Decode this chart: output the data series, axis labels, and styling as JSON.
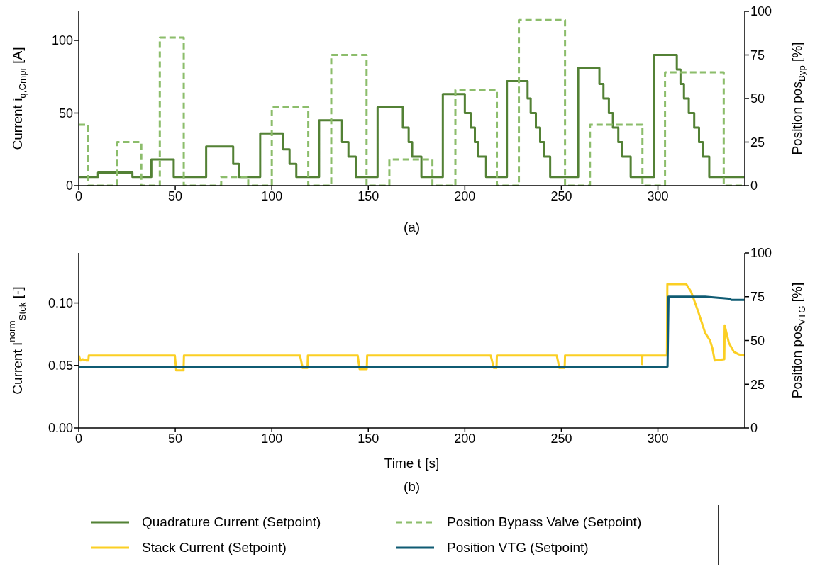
{
  "chart_data": [
    {
      "type": "step",
      "annotations": [
        "(a)"
      ],
      "ylabel": "Current i$_{q,Cmpr}$ [A]",
      "y2label": "Position pos$_{Byp}$ [%]",
      "xlim": [
        0,
        345
      ],
      "xticks": [
        0,
        50,
        100,
        150,
        200,
        250,
        300
      ],
      "ylim": [
        0,
        120
      ],
      "yticks": [
        0,
        50,
        100
      ],
      "y2lim": [
        0,
        100
      ],
      "y2ticks": [
        0,
        25,
        50,
        75,
        100
      ],
      "legend": "bottom",
      "series": [
        {
          "name": "Quadrature Current (Setpoint)",
          "color": "#538135",
          "x": [
            0,
            10,
            27.8,
            37.6,
            49.2,
            66,
            80,
            83,
            94,
            105.9,
            109.2,
            112.7,
            124.5,
            136.4,
            139.7,
            143.5,
            154.8,
            167.9,
            170.9,
            172.7,
            177.5,
            188.6,
            200,
            203.1,
            205.2,
            207,
            211,
            221.8,
            232.5,
            234.1,
            236.8,
            239,
            241.1,
            244.2,
            258.7,
            269.7,
            271.8,
            274.6,
            276.7,
            279.5,
            281.6,
            285.9,
            297.9,
            309.8,
            311.7,
            313.5,
            316,
            318.8,
            321.3,
            323.3,
            326.6,
            344.8
          ],
          "values": [
            6,
            9,
            6,
            18,
            6,
            27,
            15,
            6,
            36,
            25,
            15,
            6,
            45,
            30,
            20,
            6,
            54,
            40,
            30,
            20,
            6,
            63,
            50,
            40,
            30,
            20,
            6,
            72,
            60,
            50,
            40,
            30,
            20,
            6,
            81,
            70,
            60,
            50,
            40,
            30,
            20,
            6,
            90,
            80,
            70,
            60,
            50,
            40,
            30,
            20,
            6,
            6
          ]
        },
        {
          "name": "Position Bypass Valve (Setpoint)",
          "color": "#8cbd6b",
          "axis": "y2",
          "line_style": "dashed",
          "x": [
            0,
            4.7,
            19.9,
            32.4,
            42,
            54.4,
            73.8,
            87.8,
            100,
            118.9,
            130.8,
            149.1,
            160.9,
            183.2,
            195.1,
            216.6,
            228,
            251.9,
            264.8,
            292,
            303.7,
            334.1,
            344.8
          ],
          "values": [
            35,
            0,
            25,
            0,
            85,
            0,
            5,
            0,
            45,
            0,
            75,
            0,
            15,
            0,
            55,
            0,
            95,
            0,
            35,
            0,
            65,
            0,
            0
          ]
        }
      ]
    },
    {
      "type": "line",
      "annotations": [
        "(b)"
      ],
      "xlabel": "Time t [s]",
      "ylabel": "Current I$^{norm}$$_{Stck}$ [-]",
      "y2label": "Position pos$_{VTG}$ [%]",
      "xlim": [
        0,
        345
      ],
      "xticks": [
        0,
        50,
        100,
        150,
        200,
        250,
        300
      ],
      "ylim": [
        0,
        0.14
      ],
      "yticks": [
        {
          "value": 0,
          "label": "0.00"
        },
        {
          "value": 0.05,
          "label": "0.05"
        },
        {
          "value": 0.1,
          "label": "0.10"
        }
      ],
      "y2lim": [
        0,
        100
      ],
      "y2ticks": [
        0,
        25,
        50,
        75,
        100
      ],
      "legend": "bottom",
      "series": [
        {
          "name": "Stack Current (Setpoint)",
          "color": "#fbcf24",
          "x": [
            0,
            1,
            2,
            4,
            5,
            5.2,
            49.8,
            50.5,
            54.3,
            54.5,
            114.6,
            116,
            118.5,
            118.7,
            144.5,
            145.5,
            149.2,
            149.4,
            213.4,
            215,
            216.4,
            216.6,
            247.6,
            249,
            251.7,
            251.9,
            291.6,
            291.8,
            292,
            304.7,
            304.9,
            314.7,
            317.2,
            320.9,
            324.5,
            327,
            328.2,
            329.4,
            334.4,
            334.6,
            336.8,
            339.3,
            341.7,
            344.8
          ],
          "values": [
            0.058,
            0.054,
            0.055,
            0.054,
            0.054,
            0.058,
            0.058,
            0.046,
            0.046,
            0.058,
            0.058,
            0.048,
            0.048,
            0.058,
            0.058,
            0.047,
            0.047,
            0.058,
            0.058,
            0.048,
            0.048,
            0.058,
            0.058,
            0.048,
            0.048,
            0.058,
            0.058,
            0.051,
            0.058,
            0.058,
            0.115,
            0.115,
            0.109,
            0.093,
            0.076,
            0.07,
            0.064,
            0.054,
            0.055,
            0.082,
            0.068,
            0.061,
            0.059,
            0.058
          ]
        },
        {
          "name": "Position VTG (Setpoint)",
          "color": "#0f5b73",
          "axis": "y2",
          "x": [
            0,
            305,
            305.5,
            324.5,
            336.8,
            338,
            344.8
          ],
          "values": [
            35,
            35,
            75,
            75,
            73.9,
            73.2,
            73.2
          ]
        }
      ]
    }
  ]
}
